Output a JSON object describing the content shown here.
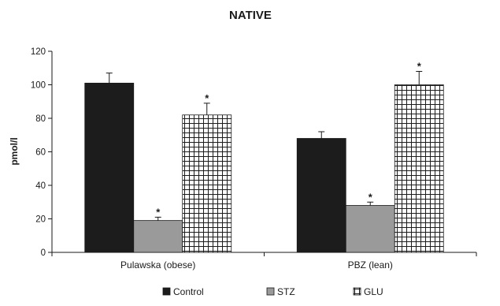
{
  "chart_data": {
    "type": "bar",
    "title": "NATIVE",
    "xlabel": "",
    "ylabel": "pmol/l",
    "ylim": [
      0,
      120
    ],
    "yticks": [
      0,
      20,
      40,
      60,
      80,
      100,
      120
    ],
    "categories": [
      "Pulawska (obese)",
      "PBZ (lean)"
    ],
    "series": [
      {
        "name": "Control",
        "values": [
          101,
          68
        ],
        "errors": [
          6,
          4
        ],
        "significance": [
          "",
          ""
        ],
        "pattern": "solid-black",
        "color": "#1c1c1c"
      },
      {
        "name": "STZ",
        "values": [
          19,
          28
        ],
        "errors": [
          2,
          2
        ],
        "significance": [
          "*",
          "*"
        ],
        "pattern": "solid-gray",
        "color": "#9a9a9a"
      },
      {
        "name": "GLU",
        "values": [
          82,
          100
        ],
        "errors": [
          7,
          8
        ],
        "significance": [
          "*",
          "*"
        ],
        "pattern": "grid",
        "color": "#1c1c1c"
      }
    ],
    "legend_position": "bottom",
    "grid": false
  }
}
